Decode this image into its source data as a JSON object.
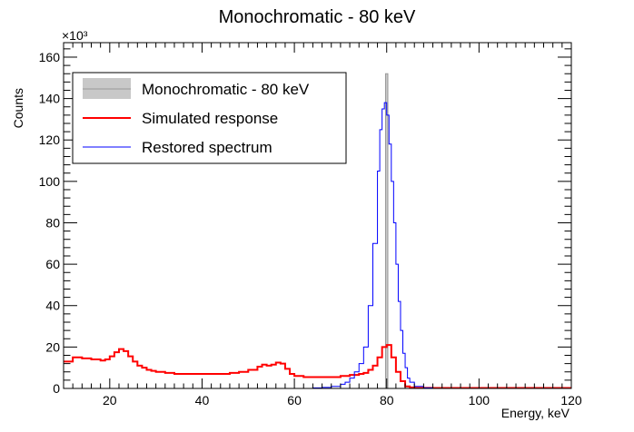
{
  "chart_data": {
    "type": "line",
    "title": "Monochromatic - 80 keV",
    "xlabel": "Energy, keV",
    "ylabel": "Counts",
    "y_multiplier": "×10³",
    "xlim": [
      10,
      120
    ],
    "ylim": [
      0,
      167
    ],
    "x_ticks": [
      20,
      40,
      60,
      80,
      100,
      120
    ],
    "y_ticks": [
      0,
      20,
      40,
      60,
      80,
      100,
      120,
      140,
      160
    ],
    "grid": false,
    "legend_placement": "top-left",
    "series": [
      {
        "name": "Monochromatic - 80 keV",
        "style": "filled-bar",
        "color": "#999999",
        "fill": "#c8c8c8",
        "x": [
          79.75,
          80.25
        ],
        "values": [
          152,
          152
        ]
      },
      {
        "name": "Simulated response",
        "style": "step",
        "color": "#ff0000",
        "x": [
          10,
          12,
          14,
          16,
          18,
          19,
          20,
          21,
          22,
          23,
          24,
          25,
          26,
          27,
          28,
          29,
          30,
          32,
          34,
          36,
          40,
          44,
          46,
          48,
          50,
          52,
          53,
          54,
          55,
          56,
          57,
          58,
          59,
          60,
          62,
          66,
          70,
          72,
          74,
          75,
          76,
          77,
          78,
          79,
          80,
          81,
          82,
          83,
          84,
          85,
          86,
          90,
          100,
          110,
          120
        ],
        "values": [
          13,
          15,
          14.5,
          14,
          13.5,
          14,
          15.5,
          17.5,
          19,
          18,
          15.5,
          13,
          11,
          10,
          9,
          8.5,
          8,
          7.5,
          7,
          7,
          7,
          7,
          7.5,
          8,
          9,
          10.5,
          11.5,
          11,
          11.5,
          12.5,
          12,
          9.5,
          7,
          6,
          5.5,
          5.5,
          6,
          6.5,
          7,
          7.5,
          9,
          11,
          15,
          20,
          21,
          15,
          8,
          3.5,
          1,
          0.5,
          0.3,
          0.2,
          0.2,
          0.2,
          0.2
        ]
      },
      {
        "name": "Restored spectrum",
        "style": "step",
        "color": "#0000ff",
        "x": [
          10,
          60,
          64,
          66,
          68,
          70,
          71,
          72,
          73,
          74,
          75,
          76,
          77,
          78,
          78.5,
          79,
          79.5,
          80,
          80.5,
          81,
          81.5,
          82,
          82.5,
          83,
          83.5,
          84,
          84.5,
          85,
          86,
          88,
          90,
          100,
          120
        ],
        "values": [
          0,
          0,
          0.3,
          0.5,
          1,
          2,
          3,
          5,
          8,
          12,
          20,
          40,
          70,
          105,
          125,
          135,
          138,
          132,
          118,
          100,
          80,
          60,
          42,
          28,
          17,
          10,
          5,
          3,
          1,
          0.3,
          0,
          0,
          0
        ]
      }
    ]
  }
}
